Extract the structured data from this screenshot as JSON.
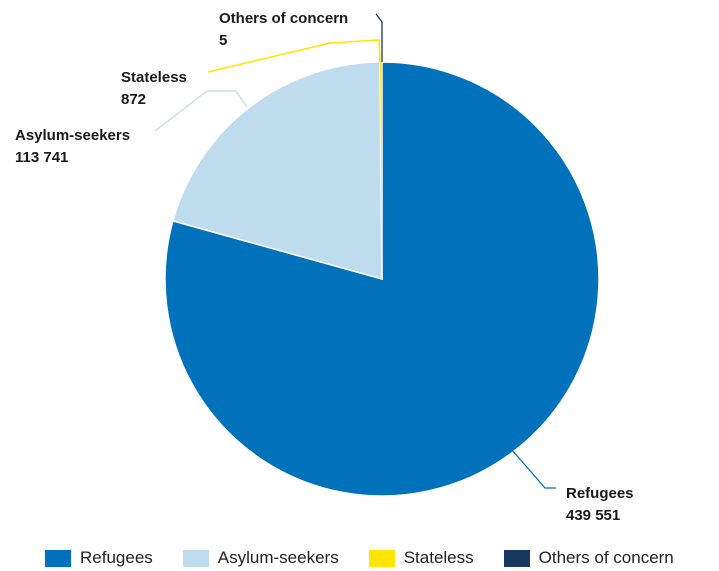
{
  "chart_data": {
    "type": "pie",
    "title": "",
    "legend_position": "bottom",
    "slices": [
      {
        "name": "Refugees",
        "value": 439551,
        "value_label": "439 551",
        "color": "#0072BC"
      },
      {
        "name": "Asylum-seekers",
        "value": 113741,
        "value_label": "113 741",
        "color": "#BFDBEE"
      },
      {
        "name": "Stateless",
        "value": 872,
        "value_label": "872",
        "color": "#FFE500"
      },
      {
        "name": "Others of concern",
        "value": 5,
        "value_label": "5",
        "color": "#18375F"
      }
    ]
  }
}
